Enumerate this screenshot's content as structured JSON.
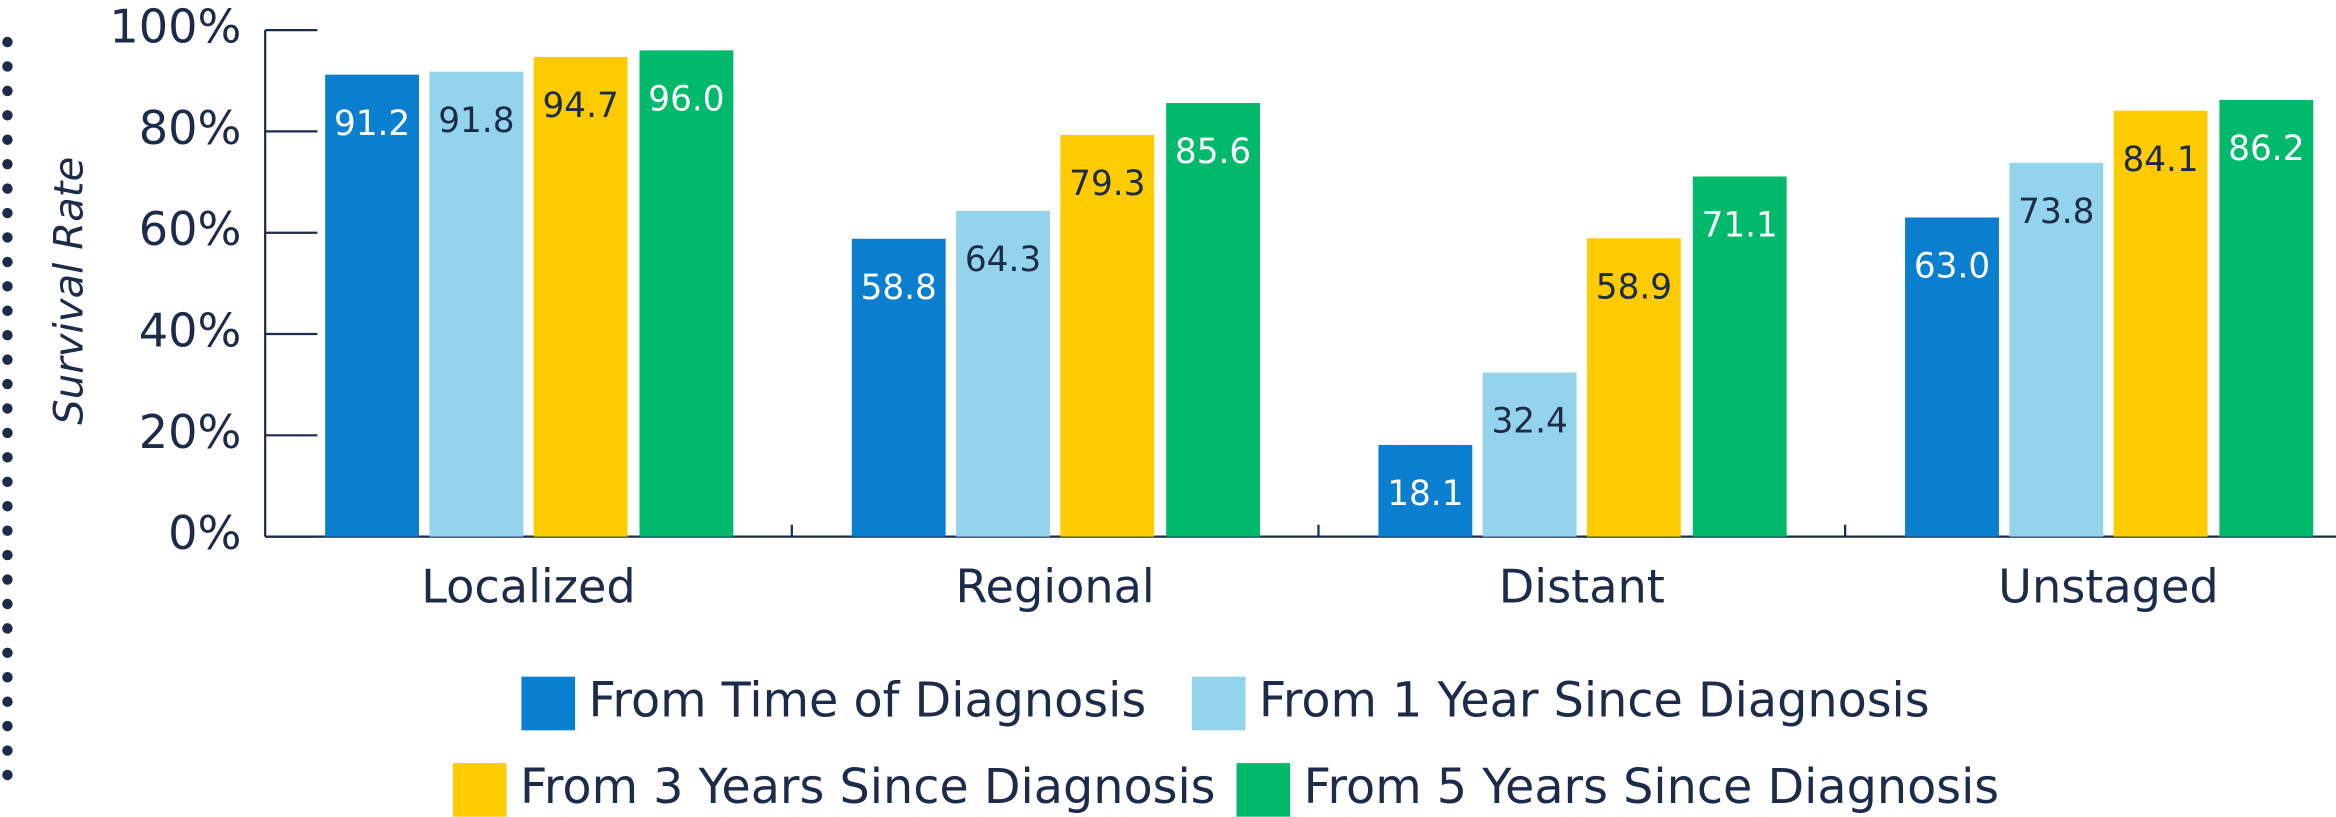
{
  "chart_data": {
    "type": "bar",
    "y_label": "Survival Rate",
    "categories": [
      "Localized",
      "Regional",
      "Distant",
      "Unstaged"
    ],
    "series": [
      {
        "name": "From Time of Diagnosis",
        "color": "#0a7fcf",
        "label_color": "#ffffff",
        "values": [
          91.2,
          58.8,
          18.1,
          63.0
        ],
        "value_labels": [
          "91.2",
          "58.8",
          "18.1",
          "63.0"
        ]
      },
      {
        "name": "From 1 Year Since Diagnosis",
        "color": "#93d4ec",
        "label_color": "#1c2b4a",
        "values": [
          91.8,
          64.3,
          32.4,
          73.8
        ],
        "value_labels": [
          "91.8",
          "64.3",
          "32.4",
          "73.8"
        ]
      },
      {
        "name": "From 3 Years Since Diagnosis",
        "color": "#fdcb00",
        "label_color": "#1c2b4a",
        "values": [
          94.7,
          79.3,
          58.9,
          84.1
        ],
        "value_labels": [
          "94.7",
          "79.3",
          "58.9",
          "84.1"
        ]
      },
      {
        "name": "From 5 Years Since Diagnosis",
        "color": "#00b96b",
        "label_color": "#ffffff",
        "values": [
          96.0,
          85.6,
          71.1,
          86.2
        ],
        "value_labels": [
          "96.0",
          "85.6",
          "71.1",
          "86.2"
        ]
      }
    ],
    "ylim": [
      0,
      100
    ],
    "yticks": [
      {
        "value": 0,
        "label": "0%"
      },
      {
        "value": 20,
        "label": "20%"
      },
      {
        "value": 40,
        "label": "40%"
      },
      {
        "value": 60,
        "label": "60%"
      },
      {
        "value": 80,
        "label": "80%"
      },
      {
        "value": 100,
        "label": "100%"
      }
    ]
  }
}
